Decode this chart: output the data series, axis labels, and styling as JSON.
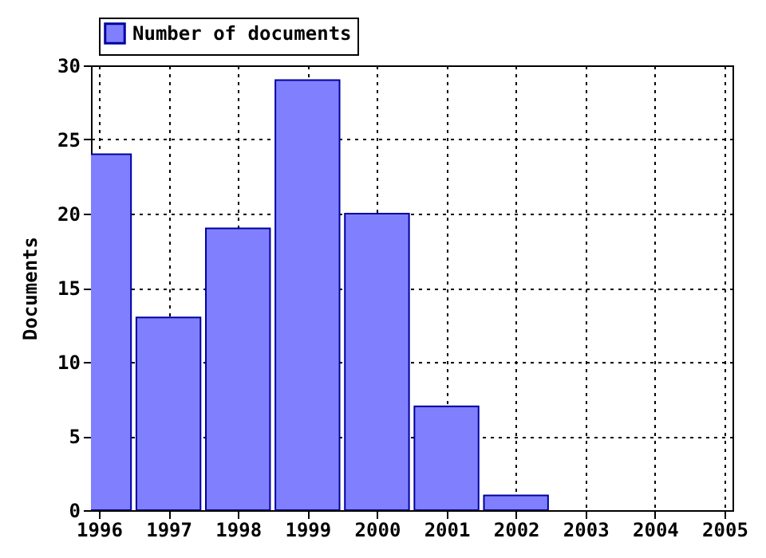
{
  "chart_data": {
    "type": "bar",
    "ylabel": "Documents",
    "x": [
      1996,
      1997,
      1998,
      1999,
      2000,
      2001,
      2002
    ],
    "series": [
      {
        "name": "Number of documents",
        "color": "#8080ff",
        "values": [
          24,
          13,
          19,
          29,
          20,
          7,
          1
        ]
      }
    ],
    "xlim": [
      1996,
      2005
    ],
    "xticks": [
      1996,
      1997,
      1998,
      1999,
      2000,
      2001,
      2002,
      2003,
      2004,
      2005
    ],
    "ylim": [
      0,
      30
    ],
    "yticks": [
      0,
      5,
      10,
      15,
      20,
      25,
      30
    ],
    "grid": true,
    "legend": "top left"
  }
}
